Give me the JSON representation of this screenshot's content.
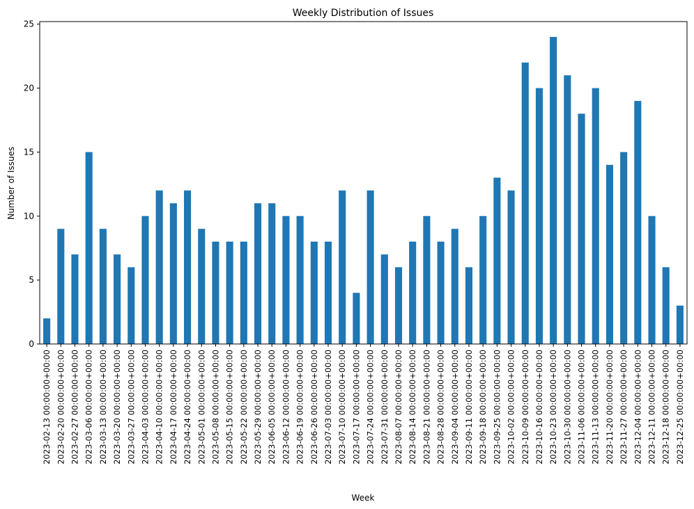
{
  "chart_data": {
    "type": "bar",
    "title": "Weekly Distribution of Issues",
    "xlabel": "Week",
    "ylabel": "Number of Issues",
    "ylim": [
      0,
      25.2
    ],
    "yticks": [
      0,
      5,
      10,
      15,
      20,
      25
    ],
    "bar_color": "#1f77b4",
    "grid": false,
    "categories": [
      "2023-02-13 00:00:00+00:00",
      "2023-02-20 00:00:00+00:00",
      "2023-02-27 00:00:00+00:00",
      "2023-03-06 00:00:00+00:00",
      "2023-03-13 00:00:00+00:00",
      "2023-03-20 00:00:00+00:00",
      "2023-03-27 00:00:00+00:00",
      "2023-04-03 00:00:00+00:00",
      "2023-04-10 00:00:00+00:00",
      "2023-04-17 00:00:00+00:00",
      "2023-04-24 00:00:00+00:00",
      "2023-05-01 00:00:00+00:00",
      "2023-05-08 00:00:00+00:00",
      "2023-05-15 00:00:00+00:00",
      "2023-05-22 00:00:00+00:00",
      "2023-05-29 00:00:00+00:00",
      "2023-06-05 00:00:00+00:00",
      "2023-06-12 00:00:00+00:00",
      "2023-06-19 00:00:00+00:00",
      "2023-06-26 00:00:00+00:00",
      "2023-07-03 00:00:00+00:00",
      "2023-07-10 00:00:00+00:00",
      "2023-07-17 00:00:00+00:00",
      "2023-07-24 00:00:00+00:00",
      "2023-07-31 00:00:00+00:00",
      "2023-08-07 00:00:00+00:00",
      "2023-08-14 00:00:00+00:00",
      "2023-08-21 00:00:00+00:00",
      "2023-08-28 00:00:00+00:00",
      "2023-09-04 00:00:00+00:00",
      "2023-09-11 00:00:00+00:00",
      "2023-09-18 00:00:00+00:00",
      "2023-09-25 00:00:00+00:00",
      "2023-10-02 00:00:00+00:00",
      "2023-10-09 00:00:00+00:00",
      "2023-10-16 00:00:00+00:00",
      "2023-10-23 00:00:00+00:00",
      "2023-10-30 00:00:00+00:00",
      "2023-11-06 00:00:00+00:00",
      "2023-11-13 00:00:00+00:00",
      "2023-11-20 00:00:00+00:00",
      "2023-11-27 00:00:00+00:00",
      "2023-12-04 00:00:00+00:00",
      "2023-12-11 00:00:00+00:00",
      "2023-12-18 00:00:00+00:00",
      "2023-12-25 00:00:00+00:00"
    ],
    "values": [
      2,
      9,
      7,
      15,
      9,
      7,
      6,
      10,
      12,
      11,
      12,
      9,
      8,
      8,
      8,
      11,
      11,
      10,
      10,
      8,
      8,
      12,
      4,
      12,
      7,
      6,
      8,
      10,
      8,
      9,
      6,
      10,
      13,
      12,
      22,
      20,
      24,
      21,
      18,
      20,
      14,
      15,
      19,
      10,
      6,
      3
    ]
  }
}
